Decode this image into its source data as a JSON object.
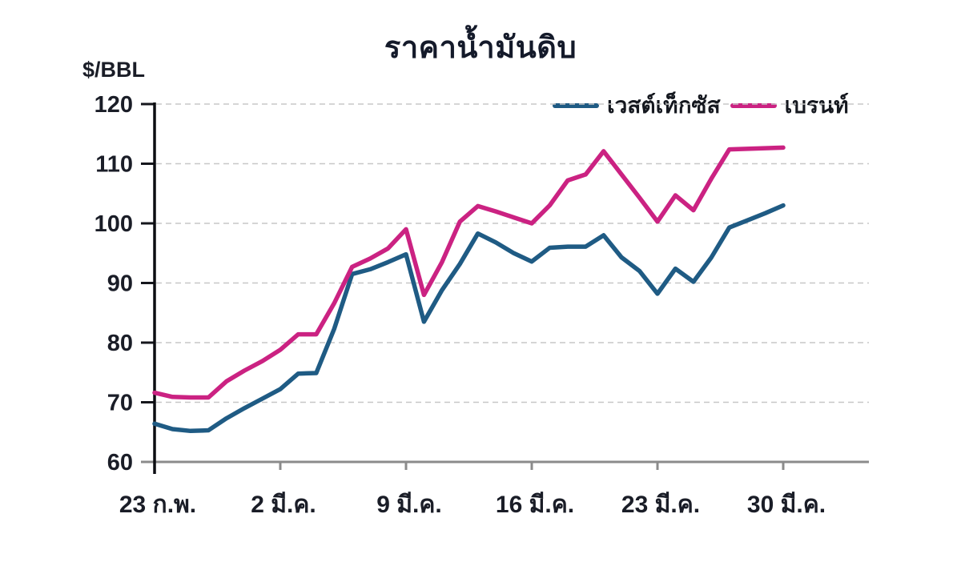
{
  "title": "ราคาน้ำมันดิบ",
  "y_axis_unit": "$/BBL",
  "legend": [
    {
      "label": "เวสต์เท็กซัส",
      "color": "#1f5b84"
    },
    {
      "label": "เบรนท์",
      "color": "#cb2282"
    }
  ],
  "chart_data": {
    "type": "line",
    "title": "ราคาน้ำมันดิบ",
    "ylabel": "$/BBL",
    "ylim": [
      60,
      120
    ],
    "y_ticks": [
      120,
      110,
      100,
      90,
      80,
      70,
      60
    ],
    "x_tick_labels": [
      "23 ก.พ.",
      "2 มี.ค.",
      "9 มี.ค.",
      "16 มี.ค.",
      "23 มี.ค.",
      "30 มี.ค."
    ],
    "x_tick_indices": [
      0,
      7,
      14,
      21,
      28,
      35
    ],
    "x_range_note": "daily values, 23 Feb - 30 Mar, 36 points",
    "grid": "horizontal dashed light gray",
    "legend_position": "top-right",
    "series": [
      {
        "name": "เวสต์เท็กซัส",
        "color": "#1f5b84",
        "values": [
          66.4,
          65.5,
          65.2,
          65.3,
          67.3,
          69.0,
          70.6,
          72.2,
          74.8,
          74.9,
          82.3,
          91.5,
          92.3,
          93.5,
          94.8,
          83.5,
          88.8,
          93.2,
          98.3,
          96.8,
          95.0,
          93.6,
          95.9,
          96.1,
          96.1,
          98.0,
          94.3,
          92.0,
          88.2,
          92.4,
          90.2,
          94.3,
          99.3,
          100.5,
          101.7,
          103.0
        ]
      },
      {
        "name": "เบรนท์",
        "color": "#cb2282",
        "values": [
          71.6,
          70.9,
          70.8,
          70.8,
          73.5,
          75.3,
          76.9,
          78.8,
          81.4,
          81.4,
          86.6,
          92.7,
          94.1,
          95.8,
          99.0,
          88.0,
          93.5,
          100.3,
          102.9,
          102.0,
          101.0,
          100.0,
          103.0,
          107.2,
          108.2,
          112.1,
          108.2,
          104.3,
          100.3,
          104.7,
          102.2,
          107.5,
          112.4,
          112.5,
          112.6,
          112.7
        ]
      }
    ]
  }
}
